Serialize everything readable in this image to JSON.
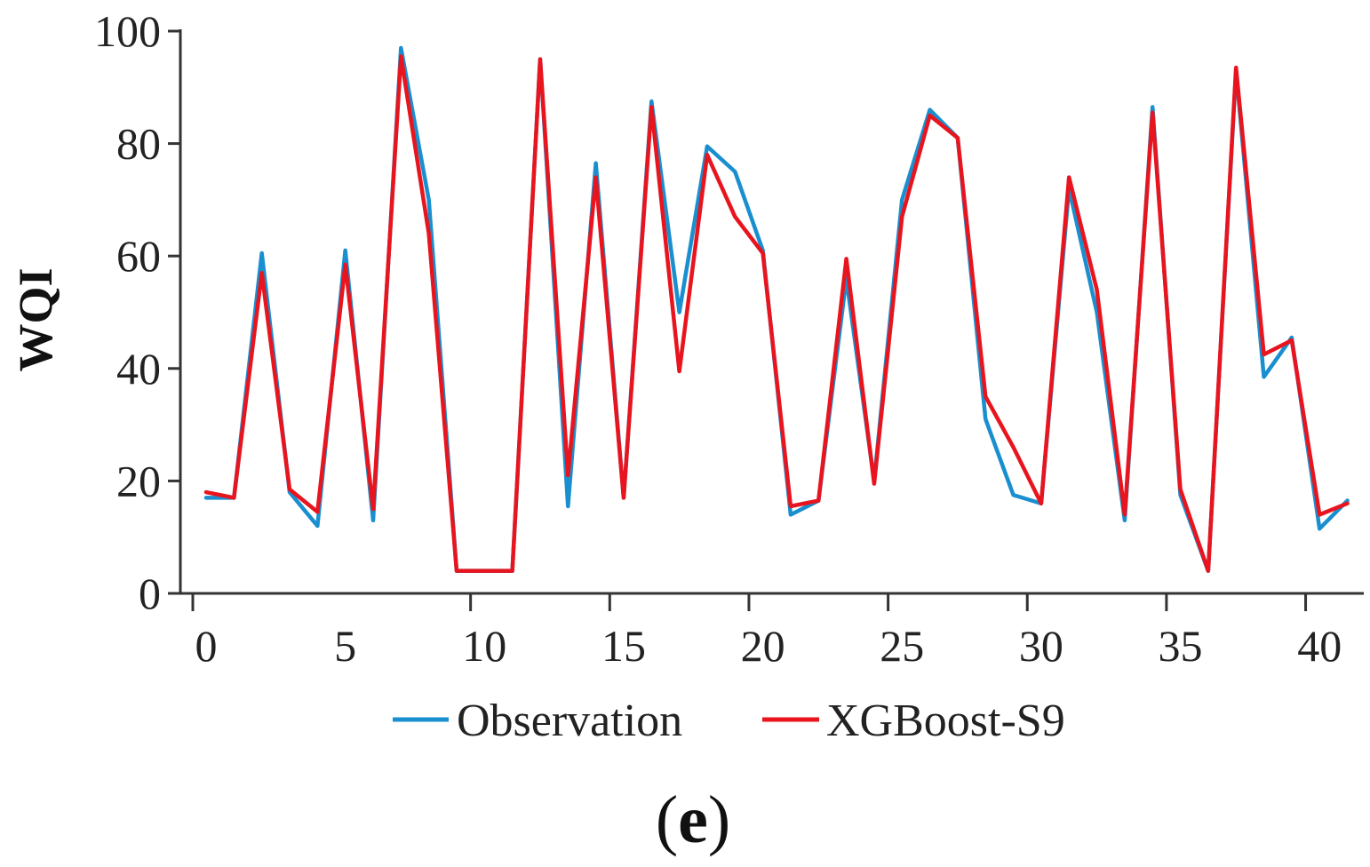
{
  "chart_data": {
    "type": "line",
    "title": "",
    "xlabel": "",
    "ylabel": "WQI",
    "xlim": [
      0,
      41.5
    ],
    "ylim": [
      0,
      100
    ],
    "x_ticks": [
      0,
      5,
      10,
      15,
      20,
      25,
      30,
      35,
      40
    ],
    "y_ticks": [
      0,
      20,
      40,
      60,
      80,
      100
    ],
    "grid": false,
    "legend_position": "bottom-center",
    "panel_label": {
      "open": "(",
      "letter": "e",
      "close": ")"
    },
    "series": [
      {
        "name": "Observation",
        "color": "#1a8fcf",
        "values": [
          17,
          17,
          60.5,
          18,
          12,
          61,
          13,
          97,
          70,
          4,
          4,
          4,
          95,
          15.5,
          76.5,
          17,
          87.5,
          50,
          79.5,
          75,
          61,
          14,
          16.5,
          56,
          20,
          70,
          86,
          81,
          31,
          17.5,
          16,
          72,
          50,
          13,
          86.5,
          17.5,
          4,
          93,
          38.5,
          45.5,
          11.5,
          16.5
        ]
      },
      {
        "name": "XGBoost-S9",
        "color": "#e8141e",
        "values": [
          18,
          17,
          57,
          18.5,
          14.5,
          58.5,
          15,
          95.5,
          64,
          4,
          4,
          4,
          95,
          21,
          74,
          17,
          86.5,
          39.5,
          78,
          67,
          60.5,
          15.5,
          16.5,
          59.5,
          19.5,
          67,
          85,
          81,
          35,
          26,
          16,
          74,
          54,
          14,
          85.5,
          18.5,
          4,
          93.5,
          42.5,
          45,
          14,
          16
        ]
      }
    ]
  }
}
